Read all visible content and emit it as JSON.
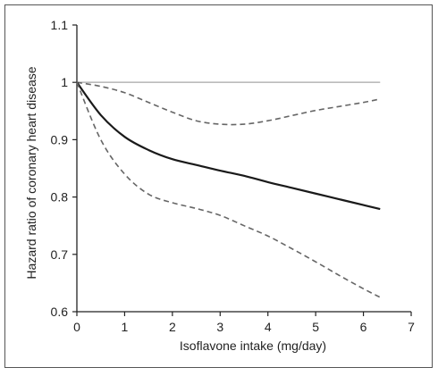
{
  "chart_data": {
    "type": "line",
    "title": "",
    "xlabel": "Isoflavone intake (mg/day)",
    "ylabel": "Hazard ratio of coronary heart disease",
    "xlim": [
      0,
      7
    ],
    "ylim": [
      0.6,
      1.1
    ],
    "x_ticks": [
      0,
      1,
      2,
      3,
      4,
      5,
      6,
      7
    ],
    "y_ticks": [
      0.6,
      0.7,
      0.8,
      0.9,
      1,
      1.1
    ],
    "x_tick_labels": [
      "0",
      "1",
      "2",
      "3",
      "4",
      "5",
      "6",
      "7"
    ],
    "y_tick_labels": [
      "0.6",
      "0.7",
      "0.8",
      "0.9",
      "1",
      "1.1"
    ],
    "grid": false,
    "legend": "none",
    "series": [
      {
        "role": "reference line",
        "style": "solid",
        "color": "#bbbbbb",
        "x": [
          0,
          6.35
        ],
        "y": [
          1.0,
          1.0
        ]
      },
      {
        "role": "upper confidence limit",
        "style": "dashed",
        "color": "#666666",
        "x": [
          0,
          0.5,
          1,
          1.5,
          2,
          2.5,
          3,
          3.5,
          4,
          4.5,
          5,
          5.5,
          6,
          6.35
        ],
        "y": [
          1.0,
          0.993,
          0.982,
          0.965,
          0.948,
          0.933,
          0.927,
          0.927,
          0.933,
          0.942,
          0.951,
          0.958,
          0.965,
          0.971
        ]
      },
      {
        "role": "estimate",
        "style": "solid",
        "color": "#1a1a1a",
        "x": [
          0,
          0.5,
          1,
          1.5,
          2,
          2.5,
          3,
          3.5,
          4,
          4.5,
          5,
          5.5,
          6,
          6.35
        ],
        "y": [
          1.0,
          0.943,
          0.905,
          0.882,
          0.866,
          0.856,
          0.846,
          0.837,
          0.826,
          0.816,
          0.806,
          0.796,
          0.786,
          0.779
        ]
      },
      {
        "role": "lower confidence limit",
        "style": "dashed",
        "color": "#666666",
        "x": [
          0,
          0.5,
          1,
          1.5,
          2,
          2.5,
          3,
          3.5,
          4,
          4.5,
          5,
          5.5,
          6,
          6.35
        ],
        "y": [
          1.0,
          0.9,
          0.84,
          0.805,
          0.79,
          0.78,
          0.768,
          0.75,
          0.732,
          0.71,
          0.687,
          0.663,
          0.64,
          0.625
        ]
      }
    ]
  }
}
